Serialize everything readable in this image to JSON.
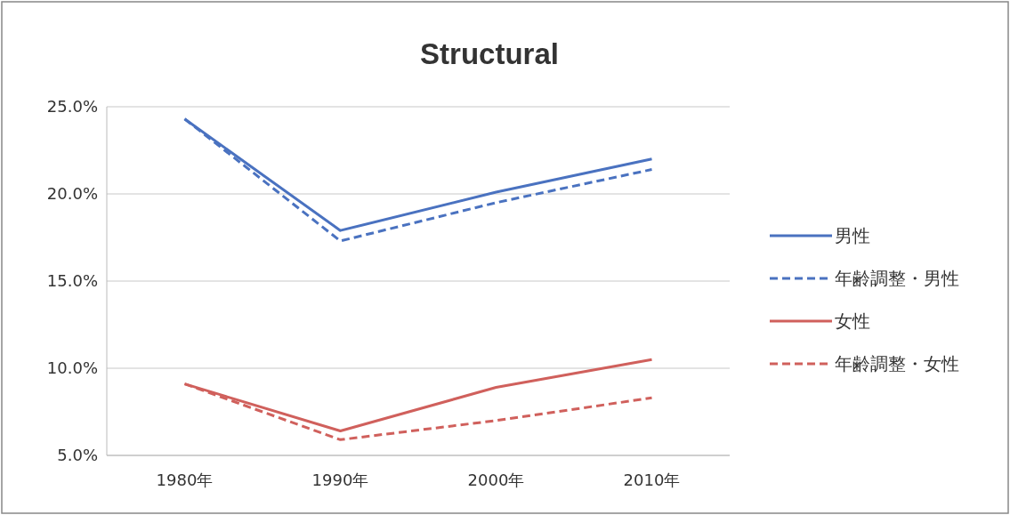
{
  "chart_data": {
    "type": "line",
    "title": "Structural",
    "categories": [
      "1980年",
      "1990年",
      "2000年",
      "2010年"
    ],
    "series": [
      {
        "name": "男性",
        "color": "#4a72c0",
        "line_style": "solid",
        "values": [
          24.3,
          17.9,
          20.1,
          22.0
        ]
      },
      {
        "name": "年齢調整・男性",
        "color": "#4a72c0",
        "line_style": "dashed",
        "values": [
          24.3,
          17.3,
          19.5,
          21.4
        ]
      },
      {
        "name": "女性",
        "color": "#d0605c",
        "line_style": "solid",
        "values": [
          9.1,
          6.4,
          8.9,
          10.5
        ]
      },
      {
        "name": "年齢調整・女性",
        "color": "#d0605c",
        "line_style": "dashed",
        "values": [
          9.1,
          5.9,
          7.0,
          8.3
        ]
      }
    ],
    "ylim": [
      5,
      25
    ],
    "yticks": [
      {
        "value": 5,
        "label": "5.0%"
      },
      {
        "value": 10,
        "label": "10.0%"
      },
      {
        "value": 15,
        "label": "15.0%"
      },
      {
        "value": 20,
        "label": "20.0%"
      },
      {
        "value": 25,
        "label": "25.0%"
      }
    ],
    "grid": "y",
    "legend": "right",
    "marker": "none"
  }
}
